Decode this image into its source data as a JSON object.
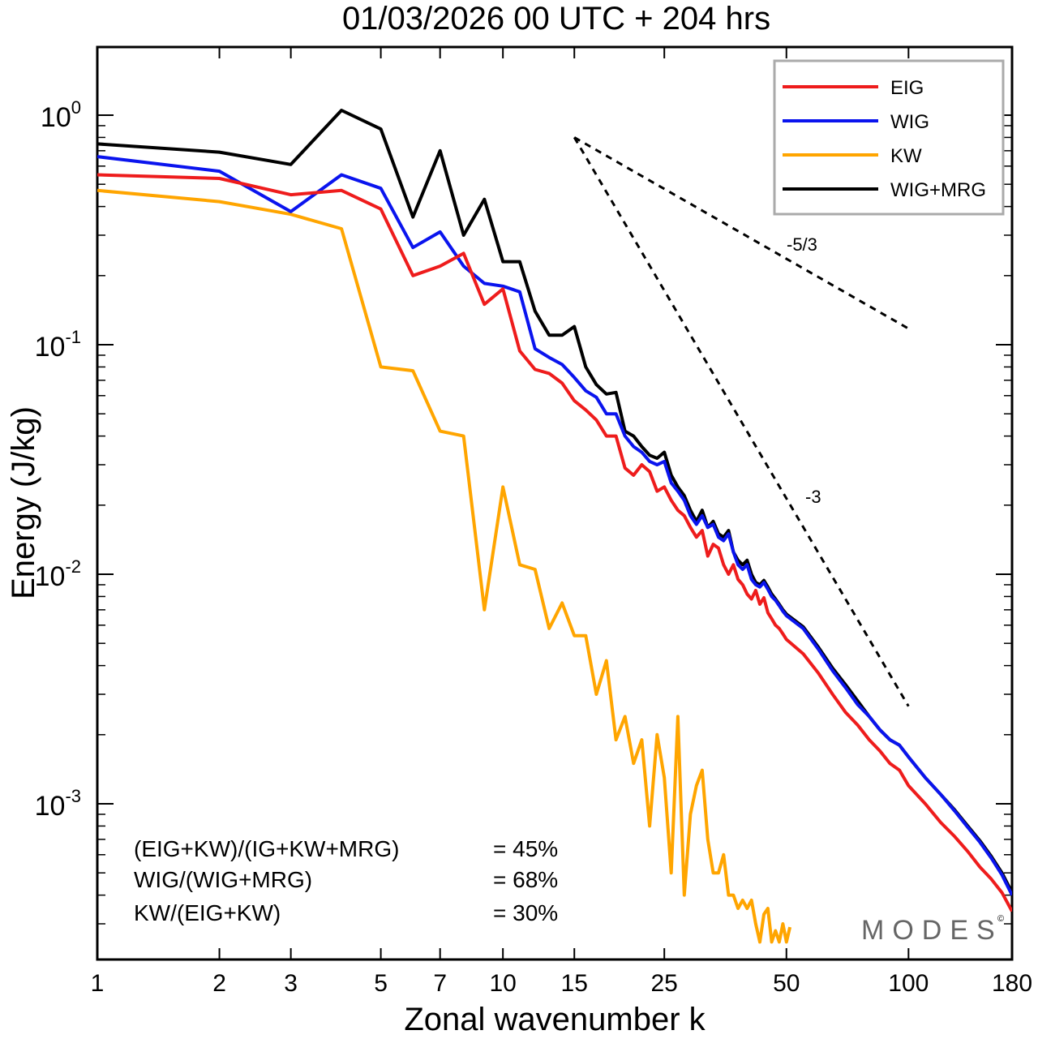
{
  "chart_data": {
    "type": "line",
    "title": "01/03/2026  00 UTC  + 204 hrs",
    "xlabel": "Zonal wavenumber k",
    "ylabel": "Energy (J/kg)",
    "xscale": "log",
    "yscale": "log",
    "xlim": [
      1,
      180
    ],
    "ylim": [
      0.00025,
      2.0
    ],
    "xticks": [
      1,
      2,
      3,
      5,
      7,
      10,
      15,
      25,
      50,
      100,
      180
    ],
    "xtick_labels": [
      "1",
      "2",
      "3",
      "5",
      "7",
      "10",
      "15",
      "25",
      "50",
      "100",
      "180"
    ],
    "yticks": [
      {
        "value": 1.0,
        "base": "10",
        "exp": "0"
      },
      {
        "value": 0.1,
        "base": "10",
        "exp": "-1"
      },
      {
        "value": 0.01,
        "base": "10",
        "exp": "-2"
      },
      {
        "value": 0.001,
        "base": "10",
        "exp": "-3"
      }
    ],
    "legend": {
      "position": "top-right",
      "entries": [
        "EIG",
        "WIG",
        "KW",
        "WIG+MRG"
      ]
    },
    "series": [
      {
        "name": "EIG",
        "color": "#ee1c1c",
        "x": [
          1,
          2,
          3,
          4,
          5,
          6,
          7,
          8,
          9,
          10,
          11,
          12,
          13,
          14,
          15,
          16,
          17,
          18,
          19,
          20,
          21,
          22,
          23,
          24,
          25,
          26,
          27,
          28,
          29,
          30,
          31,
          32,
          33,
          34,
          35,
          36,
          37,
          38,
          39,
          40,
          41,
          42,
          43,
          44,
          45,
          46,
          47,
          48,
          49,
          50,
          55,
          60,
          65,
          70,
          75,
          80,
          85,
          90,
          95,
          100,
          110,
          120,
          130,
          140,
          150,
          160,
          170,
          180
        ],
        "y": [
          0.55,
          0.53,
          0.45,
          0.47,
          0.39,
          0.2,
          0.22,
          0.25,
          0.15,
          0.175,
          0.094,
          0.078,
          0.075,
          0.068,
          0.057,
          0.052,
          0.047,
          0.04,
          0.04,
          0.029,
          0.027,
          0.03,
          0.028,
          0.023,
          0.024,
          0.021,
          0.019,
          0.018,
          0.016,
          0.0145,
          0.0155,
          0.012,
          0.0135,
          0.013,
          0.011,
          0.01,
          0.011,
          0.0095,
          0.009,
          0.0082,
          0.0078,
          0.0085,
          0.0074,
          0.0079,
          0.0068,
          0.0064,
          0.006,
          0.0058,
          0.0055,
          0.0052,
          0.0045,
          0.0037,
          0.003,
          0.0025,
          0.0022,
          0.0019,
          0.0017,
          0.0015,
          0.0014,
          0.0012,
          0.001,
          0.00083,
          0.00072,
          0.00062,
          0.00053,
          0.00047,
          0.00041,
          0.00034
        ]
      },
      {
        "name": "WIG",
        "color": "#0a14ee",
        "x": [
          1,
          2,
          3,
          4,
          5,
          6,
          7,
          8,
          9,
          10,
          11,
          12,
          13,
          14,
          15,
          16,
          17,
          18,
          19,
          20,
          21,
          22,
          23,
          24,
          25,
          26,
          27,
          28,
          29,
          30,
          31,
          32,
          33,
          34,
          35,
          36,
          37,
          38,
          39,
          40,
          41,
          42,
          43,
          44,
          45,
          46,
          47,
          48,
          49,
          50,
          55,
          60,
          65,
          70,
          75,
          80,
          85,
          90,
          95,
          100,
          110,
          120,
          130,
          140,
          150,
          160,
          170,
          180
        ],
        "y": [
          0.66,
          0.57,
          0.38,
          0.55,
          0.48,
          0.265,
          0.31,
          0.22,
          0.185,
          0.18,
          0.17,
          0.096,
          0.088,
          0.082,
          0.072,
          0.063,
          0.059,
          0.05,
          0.05,
          0.04,
          0.036,
          0.034,
          0.031,
          0.03,
          0.031,
          0.025,
          0.023,
          0.021,
          0.018,
          0.0165,
          0.018,
          0.016,
          0.0165,
          0.0145,
          0.014,
          0.015,
          0.0125,
          0.011,
          0.0105,
          0.011,
          0.0095,
          0.009,
          0.0088,
          0.0092,
          0.0086,
          0.008,
          0.0077,
          0.0073,
          0.0069,
          0.0066,
          0.0058,
          0.0047,
          0.0038,
          0.0032,
          0.0027,
          0.0024,
          0.0021,
          0.0019,
          0.0018,
          0.0016,
          0.0013,
          0.0011,
          0.00093,
          0.00079,
          0.00068,
          0.00058,
          0.00049,
          0.0004
        ]
      },
      {
        "name": "KW",
        "color": "#ffa500",
        "x": [
          1,
          2,
          3,
          4,
          5,
          6,
          7,
          8,
          9,
          10,
          11,
          12,
          13,
          14,
          15,
          16,
          17,
          18,
          19,
          20,
          21,
          22,
          23,
          24,
          25,
          26,
          27,
          28,
          29,
          30,
          31,
          32,
          33,
          34,
          35,
          36,
          37,
          38,
          39,
          40,
          41,
          42,
          43,
          44,
          45,
          46,
          47,
          48,
          49,
          50,
          51
        ],
        "y": [
          0.47,
          0.42,
          0.37,
          0.32,
          0.08,
          0.077,
          0.042,
          0.04,
          0.007,
          0.024,
          0.011,
          0.0105,
          0.0058,
          0.0075,
          0.0054,
          0.0054,
          0.003,
          0.0042,
          0.0019,
          0.0024,
          0.0015,
          0.0019,
          0.0008,
          0.002,
          0.0013,
          0.0005,
          0.0024,
          0.0004,
          0.0009,
          0.0012,
          0.0014,
          0.0007,
          0.0005,
          0.0005,
          0.0006,
          0.0004,
          0.0004,
          0.00035,
          0.00038,
          0.00035,
          0.00038,
          0.0003,
          0.00025,
          0.00033,
          0.00035,
          0.00025,
          0.00028,
          0.00025,
          0.0003,
          0.00025,
          0.00029
        ]
      },
      {
        "name": "WIG+MRG",
        "color": "#000000",
        "x": [
          1,
          2,
          3,
          4,
          5,
          6,
          7,
          8,
          9,
          10,
          11,
          12,
          13,
          14,
          15,
          16,
          17,
          18,
          19,
          20,
          21,
          22,
          23,
          24,
          25,
          26,
          27,
          28,
          29,
          30,
          31,
          32,
          33,
          34,
          35,
          36,
          37,
          38,
          39,
          40,
          41,
          42,
          43,
          44,
          45,
          46,
          47,
          48,
          49,
          50,
          55,
          60,
          65,
          70,
          75,
          80,
          85,
          90,
          95,
          100,
          110,
          120,
          130,
          140,
          150,
          160,
          170,
          180
        ],
        "y": [
          0.75,
          0.69,
          0.61,
          1.05,
          0.87,
          0.36,
          0.7,
          0.3,
          0.43,
          0.23,
          0.23,
          0.14,
          0.11,
          0.11,
          0.12,
          0.08,
          0.067,
          0.061,
          0.062,
          0.042,
          0.04,
          0.036,
          0.033,
          0.032,
          0.034,
          0.027,
          0.024,
          0.022,
          0.019,
          0.017,
          0.019,
          0.016,
          0.017,
          0.015,
          0.0145,
          0.0155,
          0.0125,
          0.0115,
          0.011,
          0.0115,
          0.01,
          0.0092,
          0.009,
          0.0094,
          0.0088,
          0.0082,
          0.0078,
          0.0074,
          0.007,
          0.0067,
          0.0059,
          0.0048,
          0.0039,
          0.0033,
          0.0028,
          0.0024,
          0.0021,
          0.0019,
          0.0018,
          0.0016,
          0.0013,
          0.0011,
          0.00094,
          0.0008,
          0.00069,
          0.00059,
          0.0005,
          0.00041
        ]
      }
    ],
    "reference_lines": [
      {
        "label": "-5/3",
        "x": [
          15,
          100
        ],
        "y": [
          0.8,
          0.1175
        ]
      },
      {
        "label": "-3",
        "x": [
          15,
          100
        ],
        "y": [
          0.8,
          0.00266
        ]
      }
    ],
    "annotations": [
      {
        "label": "(EIG+KW)/(IG+KW+MRG)",
        "value": "= 45%"
      },
      {
        "label": "WIG/(WIG+MRG)",
        "value": "= 68%"
      },
      {
        "label": "KW/(EIG+KW)",
        "value": "= 30%"
      }
    ],
    "watermark": "MODES",
    "copyright_mark": "©"
  }
}
